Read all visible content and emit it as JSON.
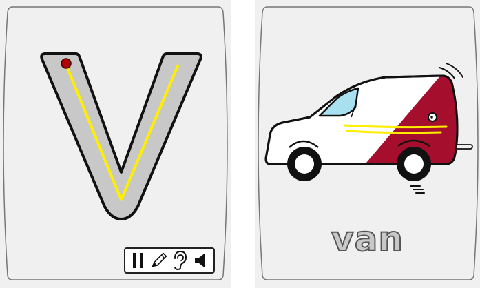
{
  "letter_card": {
    "letter": "V",
    "colors": {
      "card_bg": "#f0f0f0",
      "letter_fill": "#c8c8c8",
      "trace_line": "#ffee00",
      "start_dot": "#b30000"
    }
  },
  "toolbar": {
    "buttons": [
      {
        "name": "pause",
        "icon": "pause-icon"
      },
      {
        "name": "write",
        "icon": "pencil-icon"
      },
      {
        "name": "listen",
        "icon": "ear-icon"
      },
      {
        "name": "sound",
        "icon": "speaker-icon"
      }
    ]
  },
  "word_card": {
    "word": "van",
    "picture": "van-illustration",
    "colors": {
      "van_body": "#ffffff",
      "van_accent": "#a50f2d",
      "window": "#a8e0f0",
      "speed_lines": "#ffee00"
    }
  }
}
